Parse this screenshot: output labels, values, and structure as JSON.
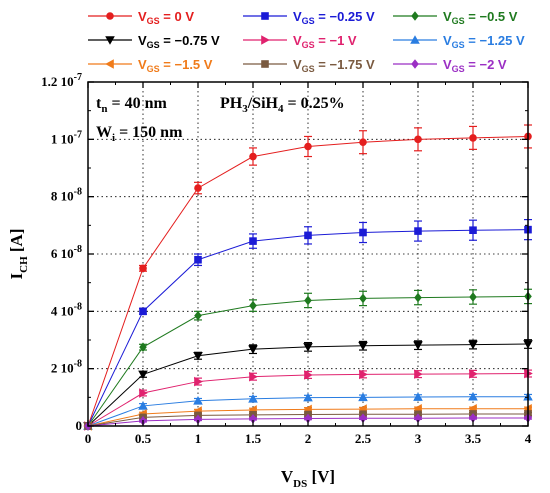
{
  "chart_data": {
    "type": "line",
    "x": [
      0,
      0.5,
      1,
      1.5,
      2,
      2.5,
      3,
      3.5,
      4
    ],
    "xlim": [
      0,
      4
    ],
    "ylim": [
      0,
      1.2e-07
    ],
    "xticks": [
      "0",
      "0.5",
      "1",
      "1.5",
      "2",
      "2.5",
      "3",
      "3.5",
      "4"
    ],
    "yticks": [
      {
        "mant": "0",
        "exp": ""
      },
      {
        "mant": "2",
        "exp": "-8"
      },
      {
        "mant": "4",
        "exp": "-8"
      },
      {
        "mant": "6",
        "exp": "-8"
      },
      {
        "mant": "8",
        "exp": "-8"
      },
      {
        "mant": "1",
        "exp": "-7"
      },
      {
        "mant": "1.2",
        "exp": "-7"
      }
    ],
    "ytick_base": "10",
    "xlabel": {
      "main": "V",
      "sub": "DS",
      "tail": " [V]"
    },
    "ylabel": {
      "main": "I",
      "sub": "CH",
      "tail": " [A]"
    },
    "grid": "dotted",
    "legend_placement": "top",
    "annotations": [
      {
        "main": "t",
        "sub": "n",
        "tail": " = 40 nm"
      },
      {
        "main": "PH",
        "sub": "3",
        "mid": "/SiH",
        "sub2": "4",
        "tail": " = 0.25%"
      },
      {
        "main": "W",
        "sub": "i",
        "tail": " = 150 nm"
      }
    ],
    "series": [
      {
        "name": "V_GS = 0 V",
        "label_pre": "V",
        "label_sub": "GS",
        "label_post": " = 0 V",
        "color": "#e41e1e",
        "marker": "circle",
        "values": [
          0,
          5.5e-08,
          8.3e-08,
          9.4e-08,
          9.75e-08,
          9.9e-08,
          1e-07,
          1.005e-07,
          1.01e-07
        ],
        "err": [
          0,
          1e-09,
          2e-09,
          3e-09,
          3.5e-09,
          4e-09,
          4e-09,
          4e-09,
          4e-09
        ]
      },
      {
        "name": "V_GS = -0.25 V",
        "label_pre": "V",
        "label_sub": "GS",
        "label_post": " = −0.25 V",
        "color": "#1b1bd6",
        "marker": "square",
        "values": [
          0,
          4e-08,
          5.8e-08,
          6.45e-08,
          6.65e-08,
          6.75e-08,
          6.8e-08,
          6.83e-08,
          6.85e-08
        ],
        "err": [
          0,
          1e-09,
          2e-09,
          2.5e-09,
          3e-09,
          3.5e-09,
          3.5e-09,
          3.5e-09,
          3.5e-09
        ]
      },
      {
        "name": "V_GS = -0.5 V",
        "label_pre": "V",
        "label_sub": "GS",
        "label_post": " = −0.5 V",
        "color": "#1f7a1f",
        "marker": "diamond",
        "values": [
          0,
          2.75e-08,
          3.85e-08,
          4.2e-08,
          4.38e-08,
          4.45e-08,
          4.48e-08,
          4.5e-08,
          4.52e-08
        ],
        "err": [
          0,
          1e-09,
          1.5e-09,
          2e-09,
          2.5e-09,
          2.5e-09,
          2.5e-09,
          2.5e-09,
          2.5e-09
        ]
      },
      {
        "name": "V_GS = -0.75 V",
        "label_pre": "V",
        "label_sub": "GS",
        "label_post": " = −0.75 V",
        "color": "#000000",
        "marker": "tri-down",
        "values": [
          0,
          1.8e-08,
          2.45e-08,
          2.68e-08,
          2.76e-08,
          2.8e-08,
          2.82e-08,
          2.84e-08,
          2.86e-08
        ],
        "err": [
          0,
          1e-09,
          1.2e-09,
          1.5e-09,
          1.5e-09,
          1.5e-09,
          1.5e-09,
          1.5e-09,
          1.5e-09
        ]
      },
      {
        "name": "V_GS = -1 V",
        "label_pre": "V",
        "label_sub": "GS",
        "label_post": " = −1 V",
        "color": "#e0226e",
        "marker": "tri-right",
        "values": [
          0,
          1.15e-08,
          1.55e-08,
          1.72e-08,
          1.78e-08,
          1.8e-08,
          1.81e-08,
          1.82e-08,
          1.83e-08
        ],
        "err": [
          0,
          1e-09,
          1.2e-09,
          1.2e-09,
          1.2e-09,
          1.2e-09,
          1.2e-09,
          1.2e-09,
          1.2e-09
        ]
      },
      {
        "name": "V_GS = -1.25 V",
        "label_pre": "V",
        "label_sub": "GS",
        "label_post": " = −1.25 V",
        "color": "#2a7de1",
        "marker": "tri-up",
        "values": [
          0,
          7e-09,
          8.8e-09,
          9.5e-09,
          9.9e-09,
          1e-08,
          1.01e-08,
          1.02e-08,
          1.02e-08
        ],
        "err": [
          0,
          8e-10,
          8e-10,
          8e-10,
          8e-10,
          8e-10,
          8e-10,
          8e-10,
          8e-10
        ]
      },
      {
        "name": "V_GS = -1.5 V",
        "label_pre": "V",
        "label_sub": "GS",
        "label_post": " = −1.5 V",
        "color": "#f07b1a",
        "marker": "tri-left",
        "values": [
          0,
          4.2e-09,
          5.2e-09,
          5.6e-09,
          5.8e-09,
          5.9e-09,
          6e-09,
          6e-09,
          6e-09
        ],
        "err": [
          0,
          6e-10,
          6e-10,
          6e-10,
          6e-10,
          6e-10,
          6e-10,
          6e-10,
          6e-10
        ]
      },
      {
        "name": "V_GS = -1.75 V",
        "label_pre": "V",
        "label_sub": "GS",
        "label_post": " = −1.75 V",
        "color": "#7a5a40",
        "marker": "square",
        "values": [
          0,
          3e-09,
          3.7e-09,
          3.9e-09,
          4e-09,
          4.1e-09,
          4.1e-09,
          4.2e-09,
          4.2e-09
        ],
        "err": [
          0,
          5e-10,
          5e-10,
          5e-10,
          5e-10,
          5e-10,
          5e-10,
          5e-10,
          5e-10
        ]
      },
      {
        "name": "V_GS = -2 V",
        "label_pre": "V",
        "label_sub": "GS",
        "label_post": " = −2 V",
        "color": "#9b2fc4",
        "marker": "diamond",
        "values": [
          0,
          1.8e-09,
          2.3e-09,
          2.5e-09,
          2.6e-09,
          2.7e-09,
          2.7e-09,
          2.8e-09,
          2.8e-09
        ],
        "err": [
          0,
          4e-10,
          4e-10,
          4e-10,
          4e-10,
          4e-10,
          4e-10,
          4e-10,
          4e-10
        ]
      }
    ]
  }
}
